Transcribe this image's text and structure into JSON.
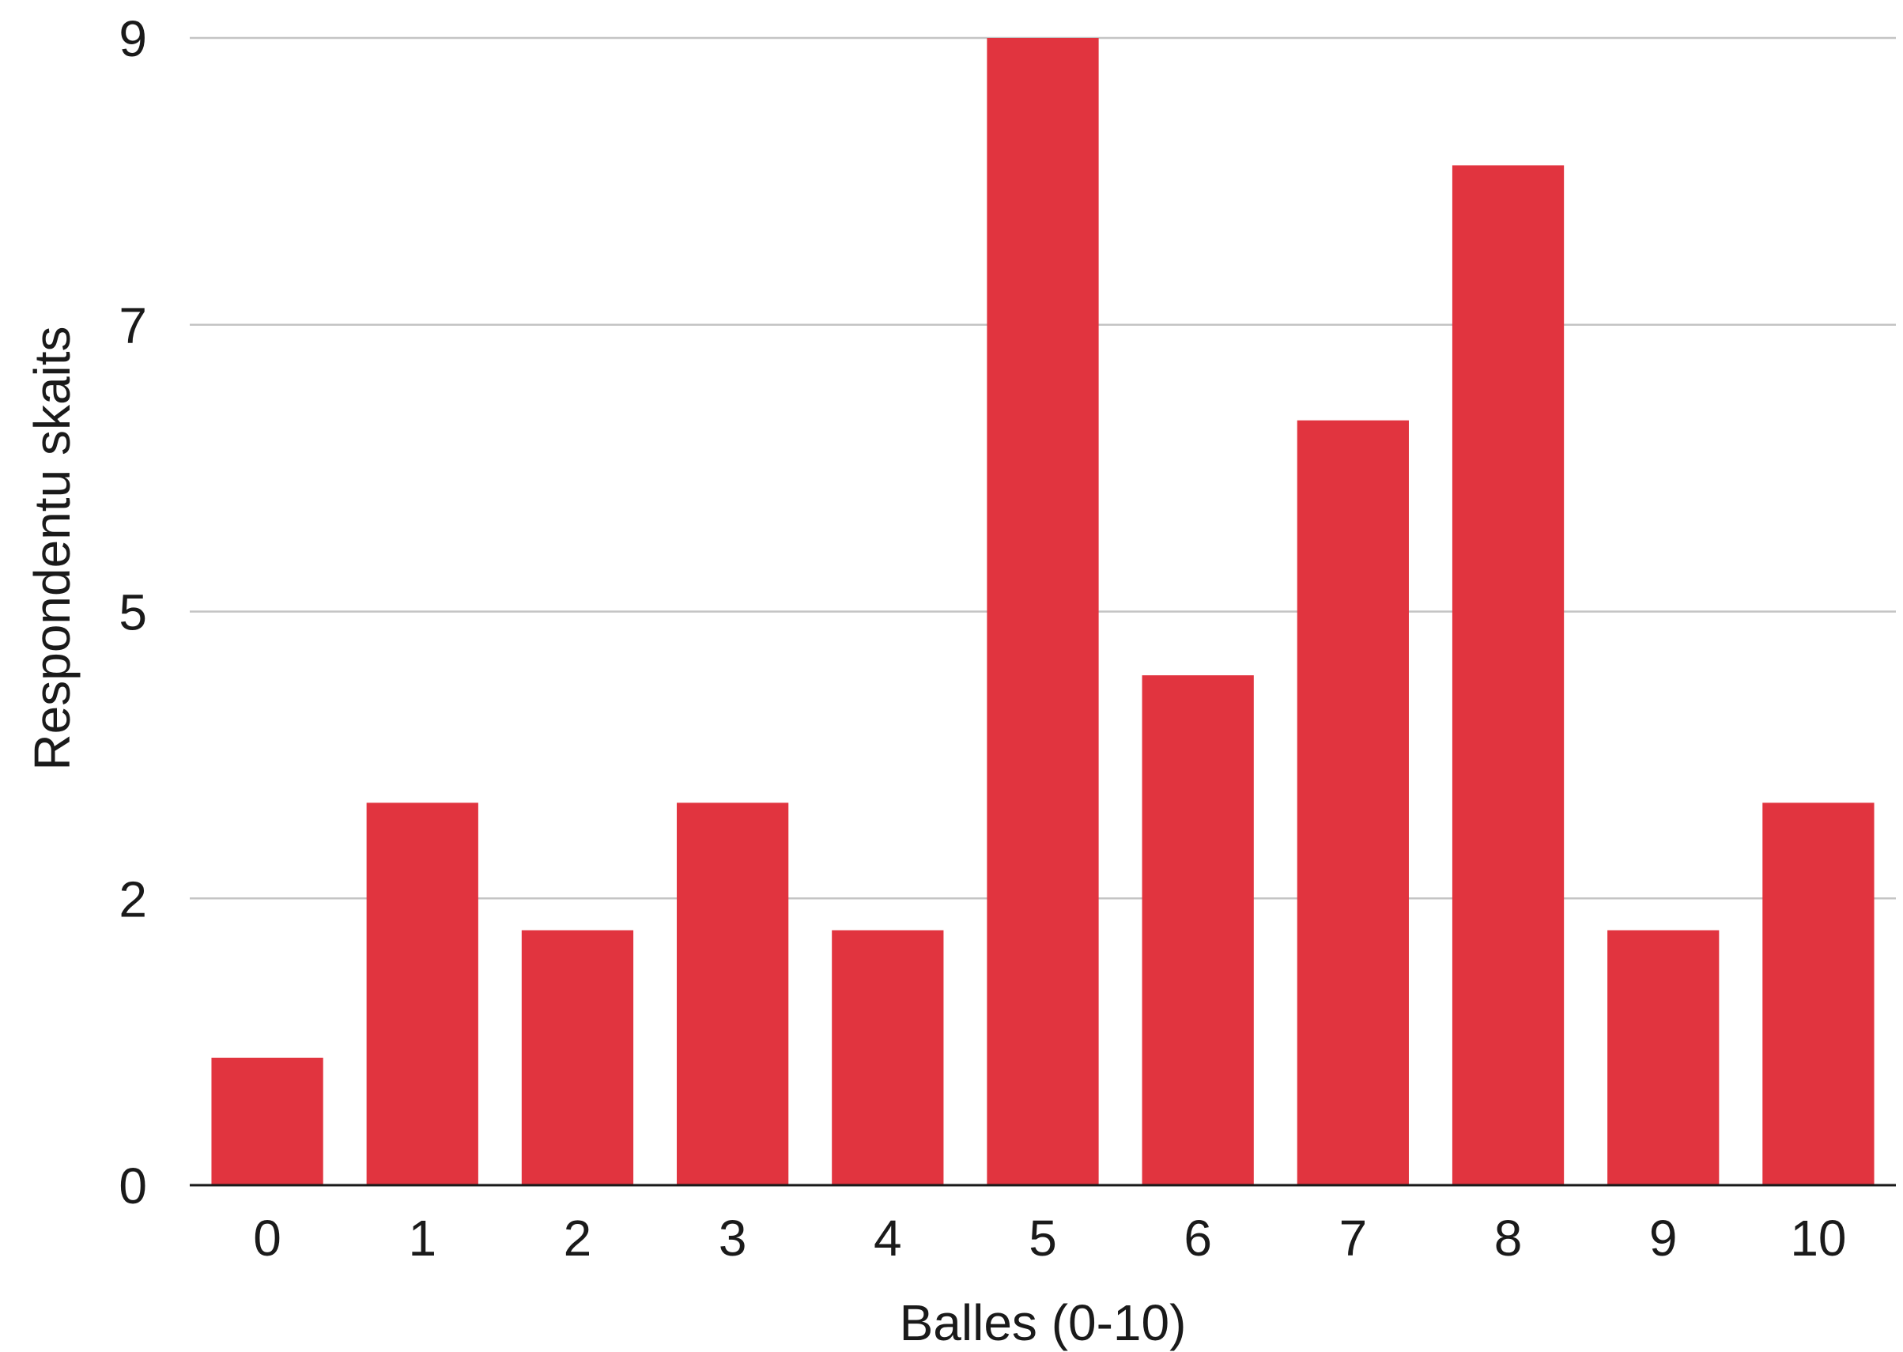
{
  "chart_data": {
    "type": "bar",
    "title": "",
    "xlabel": "Balles (0-10)",
    "ylabel": "Respondentu skaits",
    "categories": [
      "0",
      "1",
      "2",
      "3",
      "4",
      "5",
      "6",
      "7",
      "8",
      "9",
      "10"
    ],
    "values": [
      1,
      3,
      2,
      3,
      2,
      9,
      4,
      6,
      8,
      2,
      3
    ],
    "ylim": [
      0,
      9
    ],
    "yticks": [
      {
        "value": 0,
        "label": "0"
      },
      {
        "value": 2.25,
        "label": "2"
      },
      {
        "value": 4.5,
        "label": "5"
      },
      {
        "value": 6.75,
        "label": "7"
      },
      {
        "value": 9,
        "label": "9"
      }
    ],
    "grid": true,
    "legend": "none",
    "bar_color": "#e1343f"
  }
}
